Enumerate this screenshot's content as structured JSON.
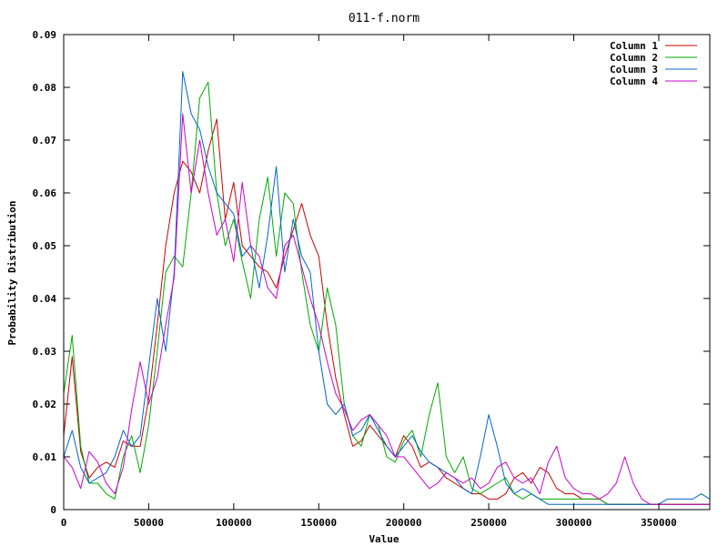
{
  "chart_data": {
    "type": "line",
    "title": "011-f.norm",
    "xlabel": "Value",
    "ylabel": "Probability Distribution",
    "xlim": [
      0,
      380000
    ],
    "ylim": [
      0,
      0.09
    ],
    "x_ticks": [
      0,
      50000,
      100000,
      150000,
      200000,
      250000,
      300000,
      350000
    ],
    "x_tick_labels": [
      "0",
      "50000",
      "100000",
      "150000",
      "200000",
      "250000",
      "300000",
      "350000"
    ],
    "y_ticks": [
      0,
      0.01,
      0.02,
      0.03,
      0.04,
      0.05,
      0.06,
      0.07,
      0.08,
      0.09
    ],
    "y_tick_labels": [
      "0",
      "0.01",
      "0.02",
      "0.03",
      "0.04",
      "0.05",
      "0.06",
      "0.07",
      "0.08",
      "0.09"
    ],
    "grid": false,
    "legend_position": "top-right",
    "x": [
      0,
      5000,
      10000,
      15000,
      20000,
      25000,
      30000,
      35000,
      40000,
      45000,
      50000,
      55000,
      60000,
      65000,
      70000,
      75000,
      80000,
      85000,
      90000,
      95000,
      100000,
      105000,
      110000,
      115000,
      120000,
      125000,
      130000,
      135000,
      140000,
      145000,
      150000,
      155000,
      160000,
      165000,
      170000,
      175000,
      180000,
      185000,
      190000,
      195000,
      200000,
      205000,
      210000,
      215000,
      220000,
      225000,
      230000,
      235000,
      240000,
      245000,
      250000,
      255000,
      260000,
      265000,
      270000,
      275000,
      280000,
      285000,
      290000,
      295000,
      300000,
      305000,
      310000,
      315000,
      320000,
      325000,
      330000,
      335000,
      340000,
      345000,
      350000,
      355000,
      360000,
      365000,
      370000,
      375000,
      380000
    ],
    "series": [
      {
        "name": "Column 1",
        "color": "#cc0000",
        "values": [
          0.014,
          0.029,
          0.011,
          0.006,
          0.008,
          0.009,
          0.008,
          0.013,
          0.012,
          0.012,
          0.021,
          0.035,
          0.05,
          0.06,
          0.066,
          0.064,
          0.06,
          0.068,
          0.074,
          0.055,
          0.062,
          0.05,
          0.048,
          0.046,
          0.045,
          0.042,
          0.048,
          0.053,
          0.058,
          0.052,
          0.048,
          0.035,
          0.025,
          0.018,
          0.012,
          0.013,
          0.016,
          0.014,
          0.012,
          0.01,
          0.014,
          0.012,
          0.008,
          0.009,
          0.008,
          0.006,
          0.005,
          0.004,
          0.003,
          0.003,
          0.002,
          0.002,
          0.003,
          0.006,
          0.007,
          0.005,
          0.008,
          0.007,
          0.004,
          0.003,
          0.003,
          0.002,
          0.002,
          0.002,
          0.001,
          0.001,
          0.001,
          0.001,
          0.001,
          0.001,
          0.001,
          0.001,
          0.001,
          0.001,
          0.001,
          0.001,
          0.001
        ]
      },
      {
        "name": "Column 2",
        "color": "#00aa00",
        "values": [
          0.022,
          0.033,
          0.012,
          0.005,
          0.005,
          0.003,
          0.002,
          0.01,
          0.014,
          0.007,
          0.016,
          0.03,
          0.045,
          0.048,
          0.046,
          0.06,
          0.078,
          0.081,
          0.06,
          0.05,
          0.055,
          0.047,
          0.04,
          0.055,
          0.063,
          0.048,
          0.06,
          0.058,
          0.045,
          0.035,
          0.03,
          0.042,
          0.035,
          0.02,
          0.014,
          0.012,
          0.018,
          0.016,
          0.01,
          0.009,
          0.013,
          0.015,
          0.01,
          0.018,
          0.024,
          0.01,
          0.007,
          0.01,
          0.004,
          0.003,
          0.004,
          0.005,
          0.006,
          0.003,
          0.002,
          0.003,
          0.002,
          0.002,
          0.002,
          0.002,
          0.002,
          0.002,
          0.002,
          0.002,
          0.001,
          0.001,
          0.001,
          0.001,
          0.001,
          0.001,
          0.001,
          0.001,
          0.001,
          0.001,
          0.001,
          0.001,
          0.001
        ]
      },
      {
        "name": "Column 3",
        "color": "#0066cc",
        "values": [
          0.01,
          0.015,
          0.008,
          0.005,
          0.006,
          0.007,
          0.01,
          0.015,
          0.012,
          0.014,
          0.027,
          0.04,
          0.03,
          0.045,
          0.083,
          0.075,
          0.072,
          0.065,
          0.06,
          0.058,
          0.056,
          0.048,
          0.05,
          0.042,
          0.052,
          0.065,
          0.045,
          0.055,
          0.048,
          0.045,
          0.03,
          0.02,
          0.018,
          0.02,
          0.014,
          0.015,
          0.018,
          0.015,
          0.012,
          0.01,
          0.012,
          0.014,
          0.011,
          0.009,
          0.008,
          0.007,
          0.006,
          0.004,
          0.003,
          0.01,
          0.018,
          0.012,
          0.005,
          0.003,
          0.004,
          0.003,
          0.002,
          0.001,
          0.001,
          0.001,
          0.001,
          0.001,
          0.001,
          0.001,
          0.001,
          0.001,
          0.001,
          0.001,
          0.001,
          0.001,
          0.001,
          0.002,
          0.002,
          0.002,
          0.002,
          0.003,
          0.002
        ]
      },
      {
        "name": "Column 4",
        "color": "#cc00cc",
        "values": [
          0.01,
          0.008,
          0.004,
          0.011,
          0.009,
          0.005,
          0.003,
          0.008,
          0.019,
          0.028,
          0.02,
          0.025,
          0.035,
          0.044,
          0.075,
          0.06,
          0.07,
          0.06,
          0.052,
          0.055,
          0.047,
          0.062,
          0.05,
          0.048,
          0.042,
          0.04,
          0.05,
          0.052,
          0.046,
          0.04,
          0.035,
          0.028,
          0.022,
          0.019,
          0.015,
          0.017,
          0.018,
          0.016,
          0.014,
          0.01,
          0.01,
          0.008,
          0.006,
          0.004,
          0.005,
          0.007,
          0.006,
          0.005,
          0.006,
          0.004,
          0.005,
          0.008,
          0.009,
          0.006,
          0.005,
          0.006,
          0.003,
          0.009,
          0.012,
          0.006,
          0.004,
          0.003,
          0.003,
          0.002,
          0.003,
          0.005,
          0.01,
          0.005,
          0.002,
          0.001,
          0.001,
          0.001,
          0.001,
          0.001,
          0.001,
          0.001,
          0.001
        ]
      }
    ]
  }
}
